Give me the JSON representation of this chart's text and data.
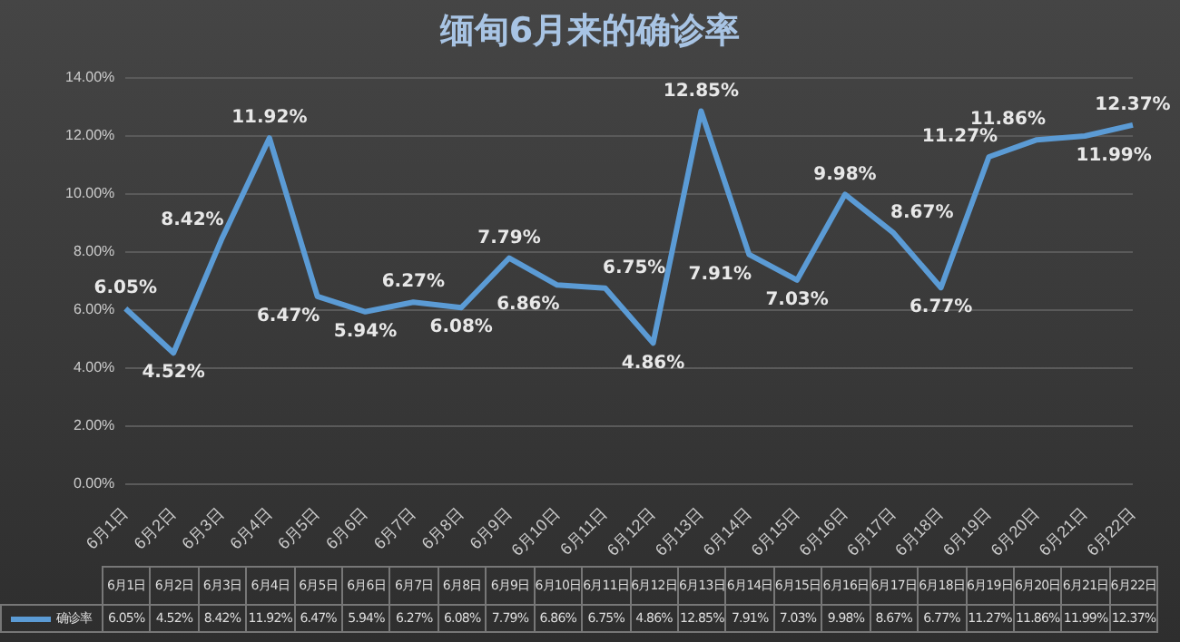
{
  "chart_data": {
    "type": "line",
    "title": "缅甸6月来的确诊率",
    "categories": [
      "6月1日",
      "6月2日",
      "6月3日",
      "6月4日",
      "6月5日",
      "6月6日",
      "6月7日",
      "6月8日",
      "6月9日",
      "6月10日",
      "6月11日",
      "6月12日",
      "6月13日",
      "6月14日",
      "6月15日",
      "6月16日",
      "6月17日",
      "6月18日",
      "6月19日",
      "6月20日",
      "6月21日",
      "6月22日"
    ],
    "series": [
      {
        "name": "确诊率",
        "color": "#5b9bd5",
        "values": [
          6.05,
          4.52,
          8.42,
          11.92,
          6.47,
          5.94,
          6.27,
          6.08,
          7.79,
          6.86,
          6.75,
          4.86,
          12.85,
          7.91,
          7.03,
          9.98,
          8.67,
          6.77,
          11.27,
          11.86,
          11.99,
          12.37
        ],
        "value_labels": [
          "6.05%",
          "4.52%",
          "8.42%",
          "11.92%",
          "6.47%",
          "5.94%",
          "6.27%",
          "6.08%",
          "7.79%",
          "6.86%",
          "6.75%",
          "4.86%",
          "12.85%",
          "7.91%",
          "7.03%",
          "9.98%",
          "8.67%",
          "6.77%",
          "11.27%",
          "11.86%",
          "11.99%",
          "12.37%"
        ]
      }
    ],
    "ylim": [
      0,
      14
    ],
    "yticks": [
      {
        "value": 0,
        "label": "0.00%"
      },
      {
        "value": 2,
        "label": "2.00%"
      },
      {
        "value": 4,
        "label": "4.00%"
      },
      {
        "value": 6,
        "label": "6.00%"
      },
      {
        "value": 8,
        "label": "8.00%"
      },
      {
        "value": 10,
        "label": "10.00%"
      },
      {
        "value": 12,
        "label": "12.00%"
      },
      {
        "value": 14,
        "label": "14.00%"
      }
    ],
    "grid": "y",
    "legend": "bottom left",
    "marker": "none",
    "line_style": "solid"
  }
}
